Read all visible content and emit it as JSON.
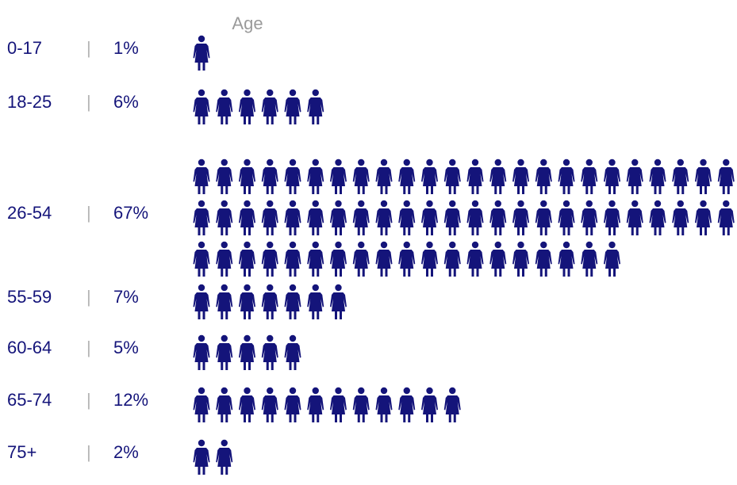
{
  "chart_data": {
    "type": "pictograph",
    "title": "Age",
    "unit_per_icon": "1%",
    "icon": "person-icon",
    "rows": [
      {
        "category": "0-17",
        "separator": "|",
        "percent_label": "1%",
        "value": 1
      },
      {
        "category": "18-25",
        "separator": "|",
        "percent_label": "6%",
        "value": 6
      },
      {
        "category": "26-54",
        "separator": "|",
        "percent_label": "67%",
        "value": 67
      },
      {
        "category": "55-59",
        "separator": "|",
        "percent_label": "7%",
        "value": 7
      },
      {
        "category": "60-64",
        "separator": "|",
        "percent_label": "5%",
        "value": 5
      },
      {
        "category": "65-74",
        "separator": "|",
        "percent_label": "12%",
        "value": 12
      },
      {
        "category": "75+",
        "separator": "|",
        "percent_label": "2%",
        "value": 2
      }
    ],
    "colors": {
      "icon": "#14147a",
      "label": "#14147a",
      "separator": "#b4b4b4",
      "title": "#9a9a9a"
    }
  }
}
